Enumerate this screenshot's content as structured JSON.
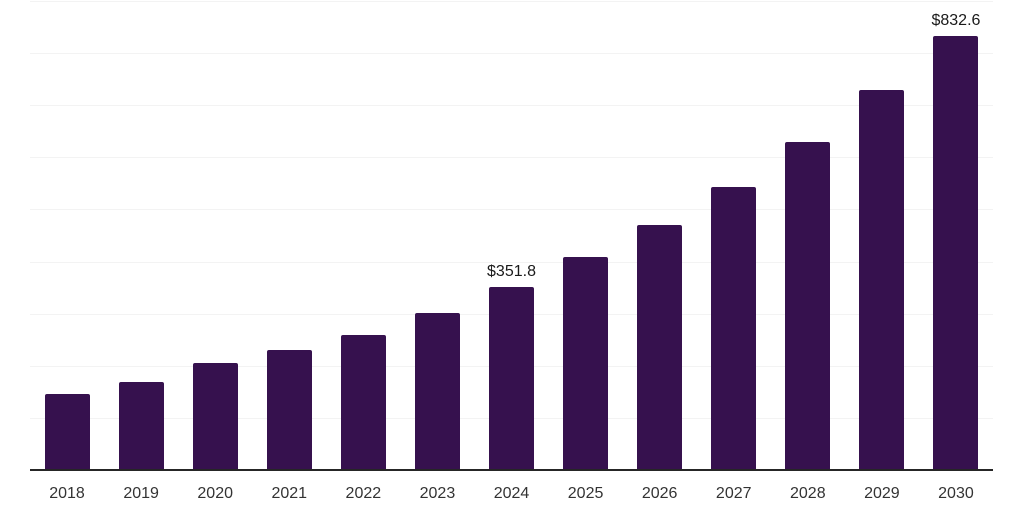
{
  "chart_data": {
    "type": "bar",
    "title": "",
    "xlabel": "",
    "ylabel": "",
    "categories": [
      "2018",
      "2019",
      "2020",
      "2021",
      "2022",
      "2023",
      "2024",
      "2025",
      "2026",
      "2027",
      "2028",
      "2029",
      "2030"
    ],
    "values": [
      145,
      169,
      206,
      231,
      260,
      301.5,
      351.8,
      409,
      471,
      544,
      629,
      728.5,
      832.6
    ],
    "data_labels": [
      "",
      "",
      "",
      "",
      "",
      "",
      "$351.8",
      "",
      "",
      "",
      "",
      "",
      "$832.6"
    ],
    "ylim": [
      0,
      900
    ],
    "gridline_step": 100,
    "grid": "horizontal",
    "legend": "none",
    "colors": {
      "bar": "#36114E",
      "gridline": "#F3F3F3",
      "axis": "#262626",
      "tick_label": "#333333",
      "value_label": "#1A1A1A",
      "background": "#FFFFFF"
    }
  }
}
